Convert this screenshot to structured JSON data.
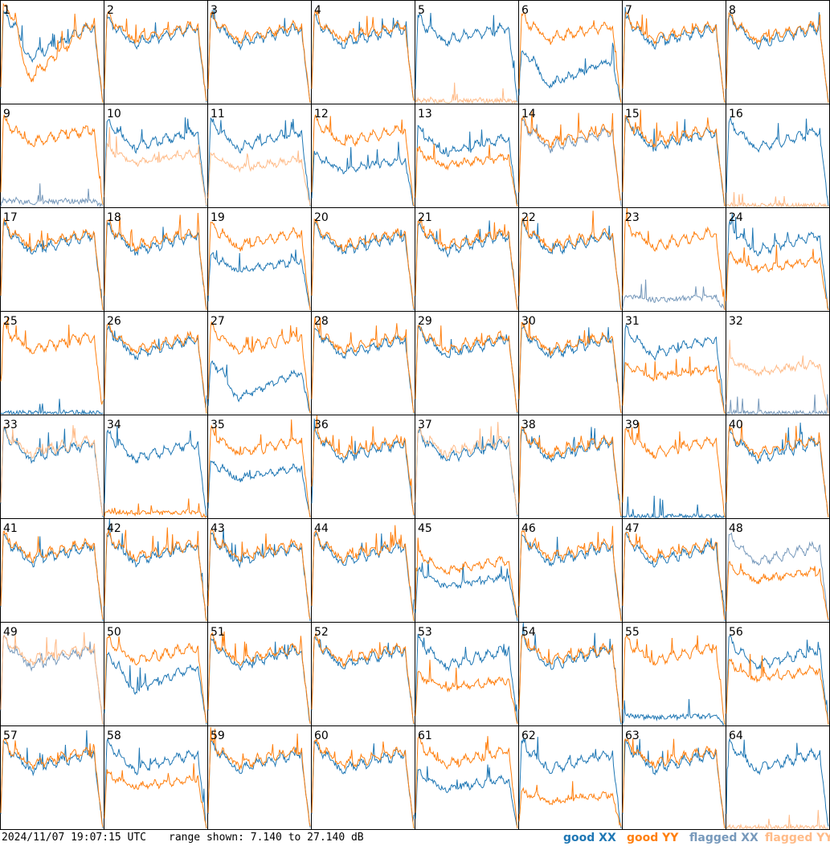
{
  "chart_data": {
    "type": "line",
    "layout": "8x8 small multiples",
    "panel_ids": [
      "1",
      "2",
      "3",
      "4",
      "5",
      "6",
      "7",
      "8",
      "9",
      "10",
      "11",
      "12",
      "13",
      "14",
      "15",
      "16",
      "17",
      "18",
      "19",
      "20",
      "21",
      "22",
      "23",
      "24",
      "25",
      "26",
      "27",
      "28",
      "29",
      "30",
      "31",
      "32",
      "33",
      "34",
      "35",
      "36",
      "37",
      "38",
      "39",
      "40",
      "41",
      "42",
      "43",
      "44",
      "45",
      "46",
      "47",
      "48",
      "49",
      "50",
      "51",
      "52",
      "53",
      "54",
      "55",
      "56",
      "57",
      "58",
      "59",
      "60",
      "61",
      "62",
      "63",
      "64"
    ],
    "ylim_db": [
      7.14,
      27.14
    ],
    "series": [
      {
        "name": "good XX",
        "color": "#1f77b4"
      },
      {
        "name": "good YY",
        "color": "#ff7f0e"
      },
      {
        "name": "flagged XX",
        "color": "#7799bb"
      },
      {
        "name": "flagged YY",
        "color": "#ffbb88"
      }
    ],
    "panels": {
      "1": {
        "xx": "good",
        "yy": "good",
        "xx_level": 0.72,
        "yy_level": 0.78,
        "xx_dip": 0.35,
        "yy_dip": 0.55
      },
      "5": {
        "xx": "good",
        "yy": "flagged",
        "yy_level": 0.02,
        "xx_dip": 0.15
      },
      "6": {
        "xx": "good",
        "yy": "good",
        "xx_level": 0.4,
        "xx_dip": 0.45
      },
      "9": {
        "xx": "flagged",
        "yy": "good",
        "xx_level": 0.05
      },
      "10": {
        "xx": "good",
        "yy": "flagged",
        "yy_level": 0.48
      },
      "11": {
        "xx": "good",
        "yy": "flagged",
        "yy_level": 0.42
      },
      "12": {
        "xx": "good",
        "yy": "good",
        "xx_level": 0.42
      },
      "13": {
        "xx": "good",
        "yy": "good",
        "xx_level": 0.62,
        "yy_level": 0.45
      },
      "14": {
        "xx": "flagged",
        "yy": "good"
      },
      "16": {
        "xx": "good",
        "yy": "flagged",
        "yy_level": 0.01
      },
      "19": {
        "xx": "good",
        "yy": "good",
        "xx_level": 0.45
      },
      "23": {
        "xx": "flagged",
        "yy": "good",
        "xx_level": 0.12
      },
      "24": {
        "xx": "good",
        "yy": "good",
        "yy_level": 0.45
      },
      "25": {
        "xx": "good",
        "yy": "good",
        "xx_level": 0.01
      },
      "27": {
        "xx": "good",
        "yy": "good",
        "xx_level": 0.4,
        "xx_dip": 0.5
      },
      "31": {
        "xx": "good",
        "yy": "good",
        "yy_level": 0.4
      },
      "32": {
        "xx": "flagged",
        "yy": "flagged",
        "xx_level": 0.01,
        "yy_level": 0.45
      },
      "33": {
        "xx": "good",
        "yy": "flagged"
      },
      "34": {
        "xx": "good",
        "yy": "good",
        "yy_level": 0.05
      },
      "35": {
        "xx": "good",
        "yy": "good",
        "xx_level": 0.45
      },
      "37": {
        "xx": "good",
        "yy": "flagged"
      },
      "39": {
        "xx": "good",
        "yy": "good",
        "xx_level": 0.01
      },
      "45": {
        "xx": "good",
        "yy": "good",
        "xx_level": 0.4,
        "yy_level": 0.55
      },
      "48": {
        "xx": "flagged",
        "yy": "good",
        "yy_level": 0.45
      },
      "49": {
        "xx": "flagged",
        "yy": "flagged"
      },
      "50": {
        "xx": "good",
        "yy": "good",
        "xx_level": 0.55,
        "xx_dip": 0.35
      },
      "53": {
        "xx": "good",
        "yy": "good",
        "yy_level": 0.4
      },
      "55": {
        "xx": "good",
        "yy": "good",
        "xx_level": 0.08
      },
      "56": {
        "xx": "good",
        "yy": "good",
        "yy_level": 0.5
      },
      "58": {
        "xx": "good",
        "yy": "good",
        "yy_level": 0.45
      },
      "61": {
        "xx": "good",
        "yy": "good",
        "xx_level": 0.45
      },
      "62": {
        "xx": "good",
        "yy": "good",
        "yy_level": 0.3
      },
      "64": {
        "xx": "good",
        "yy": "flagged",
        "yy_level": 0.01
      }
    }
  },
  "footer": {
    "timestamp": "2024/11/07 19:07:15 UTC",
    "range": "range shown: 7.140 to 27.140 dB",
    "legend": {
      "good_xx": "good XX",
      "good_yy": "good YY",
      "flagged_xx": "flagged XX",
      "flagged_yy": "flagged YY"
    }
  }
}
